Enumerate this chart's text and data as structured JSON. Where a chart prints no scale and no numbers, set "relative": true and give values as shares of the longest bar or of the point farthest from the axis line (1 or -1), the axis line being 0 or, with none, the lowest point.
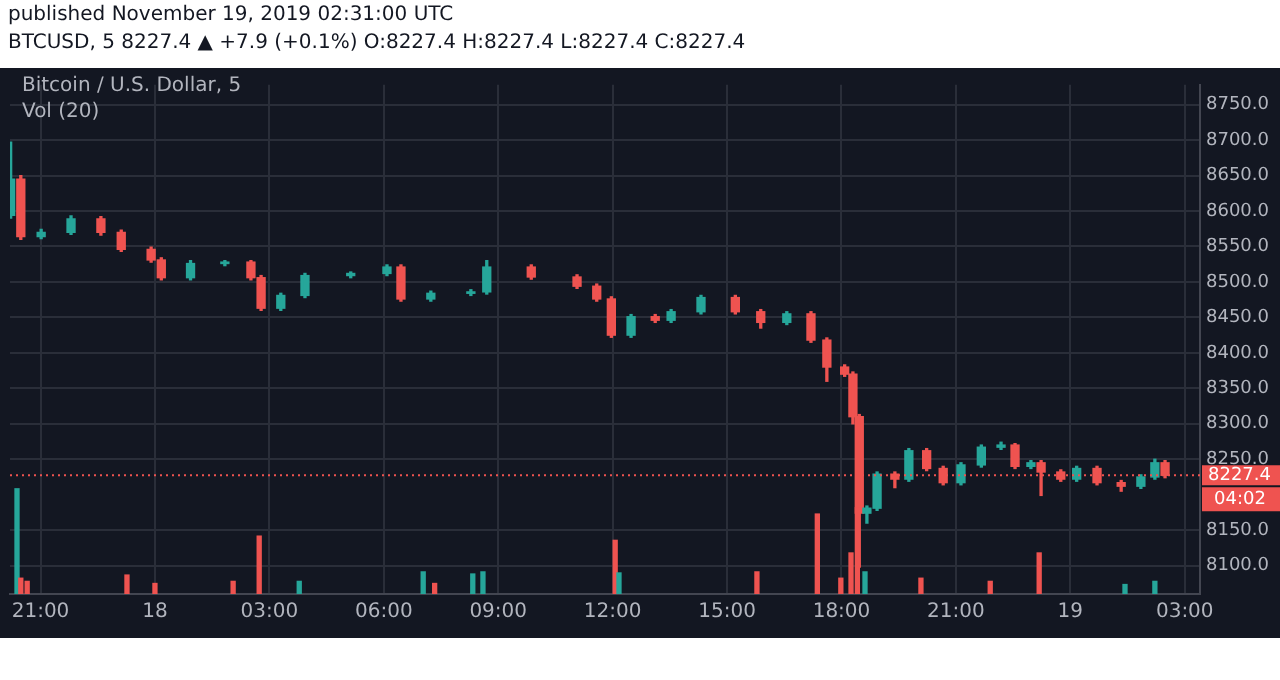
{
  "chart_data": [
    {
      "type": "candlestick",
      "title": "published November 19, 2019 02:31:00 UTC",
      "subtitle": "BTCUSD, 5 8227.4 ▲ +7.9 (+0.1%) O:8227.4 H:8227.4 L:8227.4 C:8227.4",
      "annotations": [
        "Bitcoin / U.S. Dollar, 5",
        "04:02"
      ],
      "x": [
        "2019-11-17T20:13",
        "2019-11-17T20:29",
        "2019-11-17T21:01",
        "2019-11-17T21:48",
        "2019-11-17T22:35",
        "2019-11-17T23:07",
        "2019-11-17T23:54",
        "2019-11-18T00:10",
        "2019-11-18T00:56",
        "2019-11-18T01:50",
        "2019-11-18T02:31",
        "2019-11-18T02:47",
        "2019-11-18T03:18",
        "2019-11-18T03:56",
        "2019-11-18T05:08",
        "2019-11-18T06:05",
        "2019-11-18T06:27",
        "2019-11-18T07:14",
        "2019-11-18T08:17",
        "2019-11-18T08:42",
        "2019-11-18T09:52",
        "2019-11-18T11:04",
        "2019-11-18T11:35",
        "2019-11-18T11:58",
        "2019-11-18T12:29",
        "2019-11-18T13:07",
        "2019-11-18T13:32",
        "2019-11-18T14:19",
        "2019-11-18T15:13",
        "2019-11-18T15:53",
        "2019-11-18T16:34",
        "2019-11-18T17:12",
        "2019-11-18T17:37",
        "2019-11-18T18:05",
        "2019-11-18T18:18",
        "2019-11-18T18:28",
        "2019-11-18T18:40",
        "2019-11-18T18:56",
        "2019-11-18T19:24",
        "2019-11-18T19:46",
        "2019-11-18T20:14",
        "2019-11-18T20:40",
        "2019-11-18T21:08",
        "2019-11-18T21:40",
        "2019-11-18T22:11",
        "2019-11-18T22:33",
        "2019-11-18T22:58",
        "2019-11-18T23:14",
        "2019-11-18T23:45",
        "2019-11-19T00:10",
        "2019-11-19T00:42",
        "2019-11-19T01:20",
        "2019-11-19T01:51",
        "2019-11-19T02:13",
        "2019-11-19T02:29"
      ],
      "ohlc": [
        [
          8594,
          8697,
          8590,
          8645
        ],
        [
          8645,
          8650,
          8560,
          8564
        ],
        [
          8564,
          8574,
          8561,
          8570
        ],
        [
          8570,
          8593,
          8567,
          8589
        ],
        [
          8589,
          8592,
          8566,
          8570
        ],
        [
          8570,
          8573,
          8543,
          8546
        ],
        [
          8546,
          8549,
          8528,
          8531
        ],
        [
          8531,
          8534,
          8503,
          8506
        ],
        [
          8506,
          8530,
          8503,
          8526
        ],
        [
          8526,
          8530,
          8523,
          8528
        ],
        [
          8528,
          8530,
          8503,
          8506
        ],
        [
          8506,
          8509,
          8460,
          8463
        ],
        [
          8463,
          8484,
          8460,
          8481
        ],
        [
          8481,
          8512,
          8478,
          8509
        ],
        [
          8509,
          8514,
          8506,
          8512
        ],
        [
          8512,
          8524,
          8509,
          8521
        ],
        [
          8521,
          8524,
          8473,
          8476
        ],
        [
          8476,
          8487,
          8473,
          8484
        ],
        [
          8484,
          8489,
          8481,
          8486
        ],
        [
          8486,
          8530,
          8483,
          8521
        ],
        [
          8521,
          8524,
          8504,
          8507
        ],
        [
          8507,
          8510,
          8491,
          8494
        ],
        [
          8494,
          8497,
          8473,
          8476
        ],
        [
          8476,
          8479,
          8422,
          8425
        ],
        [
          8425,
          8454,
          8422,
          8451
        ],
        [
          8451,
          8454,
          8443,
          8446
        ],
        [
          8446,
          8461,
          8443,
          8458
        ],
        [
          8458,
          8481,
          8455,
          8478
        ],
        [
          8478,
          8481,
          8455,
          8458
        ],
        [
          8458,
          8461,
          8435,
          8443
        ],
        [
          8443,
          8458,
          8440,
          8455
        ],
        [
          8455,
          8458,
          8415,
          8418
        ],
        [
          8418,
          8421,
          8360,
          8380
        ],
        [
          8380,
          8383,
          8367,
          8370
        ],
        [
          8370,
          8373,
          8300,
          8310
        ],
        [
          8310,
          8313,
          8098,
          8174
        ],
        [
          8174,
          8184,
          8160,
          8181
        ],
        [
          8181,
          8232,
          8178,
          8229
        ],
        [
          8229,
          8232,
          8210,
          8222
        ],
        [
          8222,
          8265,
          8219,
          8262
        ],
        [
          8262,
          8265,
          8234,
          8237
        ],
        [
          8237,
          8240,
          8214,
          8217
        ],
        [
          8217,
          8245,
          8214,
          8242
        ],
        [
          8242,
          8270,
          8239,
          8267
        ],
        [
          8267,
          8274,
          8264,
          8270
        ],
        [
          8270,
          8272,
          8237,
          8240
        ],
        [
          8240,
          8248,
          8237,
          8245
        ],
        [
          8245,
          8248,
          8199,
          8232
        ],
        [
          8232,
          8235,
          8219,
          8222
        ],
        [
          8222,
          8240,
          8219,
          8237
        ],
        [
          8237,
          8240,
          8214,
          8217
        ],
        [
          8217,
          8220,
          8205,
          8212
        ],
        [
          8212,
          8228,
          8209,
          8225
        ],
        [
          8225,
          8250,
          8222,
          8245
        ],
        [
          8245,
          8248,
          8224,
          8227.4
        ]
      ],
      "colors": [
        "#26a69a",
        "#ef5350",
        "#26a69a",
        "#26a69a",
        "#ef5350",
        "#ef5350",
        "#ef5350",
        "#ef5350",
        "#26a69a",
        "#26a69a",
        "#ef5350",
        "#ef5350",
        "#26a69a",
        "#26a69a",
        "#26a69a",
        "#26a69a",
        "#ef5350",
        "#26a69a",
        "#26a69a",
        "#26a69a",
        "#ef5350",
        "#ef5350",
        "#ef5350",
        "#ef5350",
        "#26a69a",
        "#ef5350",
        "#26a69a",
        "#26a69a",
        "#ef5350",
        "#ef5350",
        "#26a69a",
        "#ef5350",
        "#ef5350",
        "#ef5350",
        "#ef5350",
        "#ef5350",
        "#26a69a",
        "#26a69a",
        "#ef5350",
        "#26a69a",
        "#ef5350",
        "#ef5350",
        "#26a69a",
        "#26a69a",
        "#26a69a",
        "#ef5350",
        "#26a69a",
        "#ef5350",
        "#ef5350",
        "#26a69a",
        "#ef5350",
        "#ef5350",
        "#26a69a",
        "#26a69a",
        "#ef5350"
      ],
      "xlim": [
        "2019-11-17T20:12",
        "2019-11-19T03:24"
      ],
      "xticks": [
        {
          "value": "2019-11-17T21:00",
          "label": "21:00"
        },
        {
          "value": "2019-11-18",
          "label": "18"
        },
        {
          "value": "2019-11-18T03:00",
          "label": "03:00"
        },
        {
          "value": "2019-11-18T06:00",
          "label": "06:00"
        },
        {
          "value": "2019-11-18T09:00",
          "label": "09:00"
        },
        {
          "value": "2019-11-18T12:00",
          "label": "12:00"
        },
        {
          "value": "2019-11-18T15:00",
          "label": "15:00"
        },
        {
          "value": "2019-11-18T18:00",
          "label": "18:00"
        },
        {
          "value": "2019-11-18T21:00",
          "label": "21:00"
        },
        {
          "value": "2019-11-19",
          "label": "19"
        },
        {
          "value": "2019-11-19T03:00",
          "label": "03:00"
        }
      ],
      "ylim": [
        8060,
        8778
      ],
      "yticks": [
        {
          "value": 8100,
          "label": "8100.0"
        },
        {
          "value": 8150,
          "label": "8150.0"
        },
        {
          "value": 8250,
          "label": "8250.0"
        },
        {
          "value": 8300,
          "label": "8300.0"
        },
        {
          "value": 8350,
          "label": "8350.0"
        },
        {
          "value": 8400,
          "label": "8400.0"
        },
        {
          "value": 8450,
          "label": "8450.0"
        },
        {
          "value": 8500,
          "label": "8500.0"
        },
        {
          "value": 8550,
          "label": "8550.0"
        },
        {
          "value": 8600,
          "label": "8600.0"
        },
        {
          "value": 8650,
          "label": "8650.0"
        },
        {
          "value": 8700,
          "label": "8700.0"
        },
        {
          "value": 8750,
          "label": "8750.0"
        }
      ],
      "ref_lines": [
        {
          "axis": "y",
          "value": 8227.4,
          "label": "8227.4",
          "color": "#ef5350",
          "line_style": "dotted"
        }
      ],
      "grid": true
    },
    {
      "type": "bar",
      "title": "Vol (20)",
      "relative": true,
      "xlim": [
        "2019-11-17T20:12",
        "2019-11-19T03:24"
      ],
      "tick_labels": false,
      "x": [
        "2019-11-17T20:23",
        "2019-11-17T20:29",
        "2019-11-17T20:39",
        "2019-11-17T23:16",
        "2019-11-18T00:00",
        "2019-11-18T02:03",
        "2019-11-18T02:44",
        "2019-11-18T03:47",
        "2019-11-18T07:02",
        "2019-11-18T07:20",
        "2019-11-18T08:20",
        "2019-11-18T08:36",
        "2019-11-18T12:04",
        "2019-11-18T12:10",
        "2019-11-18T15:47",
        "2019-11-18T17:22",
        "2019-11-18T17:59",
        "2019-11-18T18:15",
        "2019-11-18T18:25",
        "2019-11-18T18:37",
        "2019-11-18T20:05",
        "2019-11-18T21:54",
        "2019-11-18T23:11",
        "2019-11-19T01:26",
        "2019-11-19T02:13"
      ],
      "values": [
        1,
        0.15,
        0.12,
        0.18,
        0.1,
        0.12,
        0.55,
        0.12,
        0.21,
        0.1,
        0.19,
        0.21,
        0.51,
        0.2,
        0.21,
        0.76,
        0.15,
        0.39,
        0.82,
        0.21,
        0.15,
        0.12,
        0.39,
        0.09,
        0.12
      ],
      "colors": [
        "#26a69a",
        "#ef5350",
        "#ef5350",
        "#ef5350",
        "#ef5350",
        "#ef5350",
        "#ef5350",
        "#26a69a",
        "#26a69a",
        "#ef5350",
        "#26a69a",
        "#26a69a",
        "#ef5350",
        "#26a69a",
        "#ef5350",
        "#ef5350",
        "#ef5350",
        "#ef5350",
        "#ef5350",
        "#26a69a",
        "#ef5350",
        "#ef5350",
        "#ef5350",
        "#26a69a",
        "#26a69a"
      ]
    }
  ]
}
